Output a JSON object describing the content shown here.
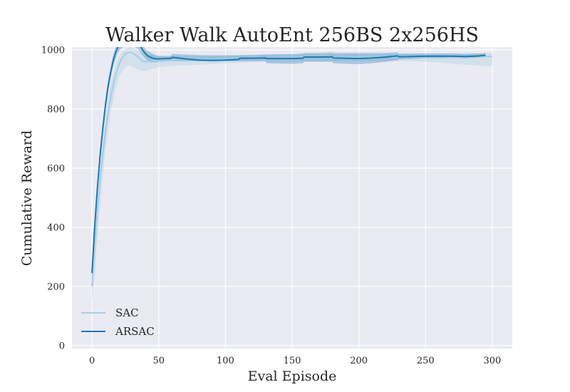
{
  "chart_data": {
    "type": "line",
    "title": "Walker Walk AutoEnt 256BS 2x256HS",
    "xlabel": "Eval Episode",
    "ylabel": "Cumulative Reward",
    "xlim": [
      -15,
      315
    ],
    "ylim": [
      -10,
      1010
    ],
    "xticks": [
      0,
      50,
      100,
      150,
      200,
      250,
      300
    ],
    "yticks": [
      0,
      200,
      400,
      600,
      800,
      1000
    ],
    "grid": true,
    "legend_position": "lower-left",
    "colors": {
      "background": "#eaeaf2",
      "grid": "#ffffff",
      "sac": "#a6cee3",
      "arsac": "#1f78b4",
      "text": "#262626"
    },
    "series": [
      {
        "name": "SAC",
        "x": [
          0,
          2,
          4,
          6,
          8,
          10,
          12,
          14,
          16,
          18,
          20,
          22,
          24,
          26,
          28,
          30,
          32,
          34,
          36,
          38,
          40,
          44,
          48,
          55,
          65,
          80,
          100,
          120,
          140,
          160,
          180,
          200,
          220,
          240,
          260,
          280,
          300
        ],
        "y": [
          200,
          330,
          450,
          555,
          645,
          720,
          785,
          840,
          885,
          920,
          948,
          968,
          982,
          990,
          992,
          990,
          985,
          978,
          970,
          963,
          960,
          962,
          965,
          967,
          968,
          968,
          970,
          972,
          973,
          975,
          975,
          975,
          976,
          977,
          977,
          977,
          978
        ],
        "lower": [
          140,
          240,
          360,
          470,
          570,
          655,
          725,
          785,
          835,
          875,
          905,
          925,
          938,
          945,
          948,
          945,
          940,
          935,
          930,
          928,
          930,
          935,
          940,
          945,
          948,
          950,
          955,
          958,
          960,
          962,
          962,
          962,
          963,
          962,
          958,
          950,
          945
        ],
        "upper": [
          270,
          420,
          540,
          640,
          720,
          785,
          840,
          885,
          920,
          950,
          975,
          990,
          1000,
          1005,
          1008,
          1008,
          1005,
          1000,
          995,
          992,
          988,
          985,
          982,
          980,
          980,
          980,
          982,
          984,
          985,
          986,
          986,
          986,
          986,
          987,
          988,
          989,
          990
        ]
      },
      {
        "name": "ARSAC",
        "x": [
          0,
          2,
          4,
          6,
          8,
          10,
          12,
          14,
          16,
          18,
          20,
          22,
          24,
          26,
          28,
          30,
          32,
          34,
          36,
          38,
          40,
          42,
          44,
          46,
          48,
          50,
          55,
          59,
          60,
          70,
          80,
          90,
          100,
          110,
          111,
          120,
          130,
          131,
          140,
          150,
          158,
          159,
          170,
          180,
          181,
          190,
          200,
          210,
          220,
          229,
          230,
          240,
          250,
          260,
          270,
          280,
          290,
          295
        ],
        "y": [
          245,
          400,
          530,
          640,
          730,
          810,
          875,
          925,
          965,
          995,
          1015,
          1025,
          1030,
          1032,
          1033,
          1032,
          1030,
          1025,
          1015,
          1000,
          988,
          980,
          975,
          972,
          970,
          970,
          971,
          971,
          975,
          970,
          966,
          965,
          966,
          968,
          972,
          972,
          973,
          971,
          971,
          971,
          972,
          976,
          976,
          977,
          973,
          972,
          971,
          973,
          976,
          980,
          977,
          978,
          979,
          979,
          979,
          978,
          980,
          982
        ],
        "lower": [
          225,
          380,
          510,
          620,
          710,
          790,
          855,
          905,
          945,
          975,
          995,
          1005,
          1010,
          1012,
          1013,
          1012,
          1010,
          1005,
          995,
          982,
          972,
          962,
          958,
          958,
          958,
          960,
          962,
          963,
          963,
          962,
          962,
          961,
          962,
          962,
          962,
          962,
          963,
          955,
          954,
          953,
          955,
          960,
          960,
          960,
          955,
          953,
          952,
          955,
          960,
          965,
          968,
          970,
          972,
          972,
          973,
          972,
          974,
          976
        ],
        "upper": [
          265,
          420,
          550,
          660,
          750,
          830,
          895,
          945,
          985,
          1015,
          1035,
          1045,
          1050,
          1052,
          1053,
          1052,
          1050,
          1045,
          1035,
          1018,
          1004,
          996,
          992,
          986,
          982,
          980,
          980,
          980,
          987,
          985,
          983,
          982,
          982,
          982,
          983,
          983,
          985,
          985,
          986,
          986,
          988,
          990,
          990,
          992,
          990,
          990,
          990,
          990,
          990,
          992,
          988,
          988,
          988,
          988,
          988,
          987,
          988,
          989
        ]
      }
    ]
  }
}
